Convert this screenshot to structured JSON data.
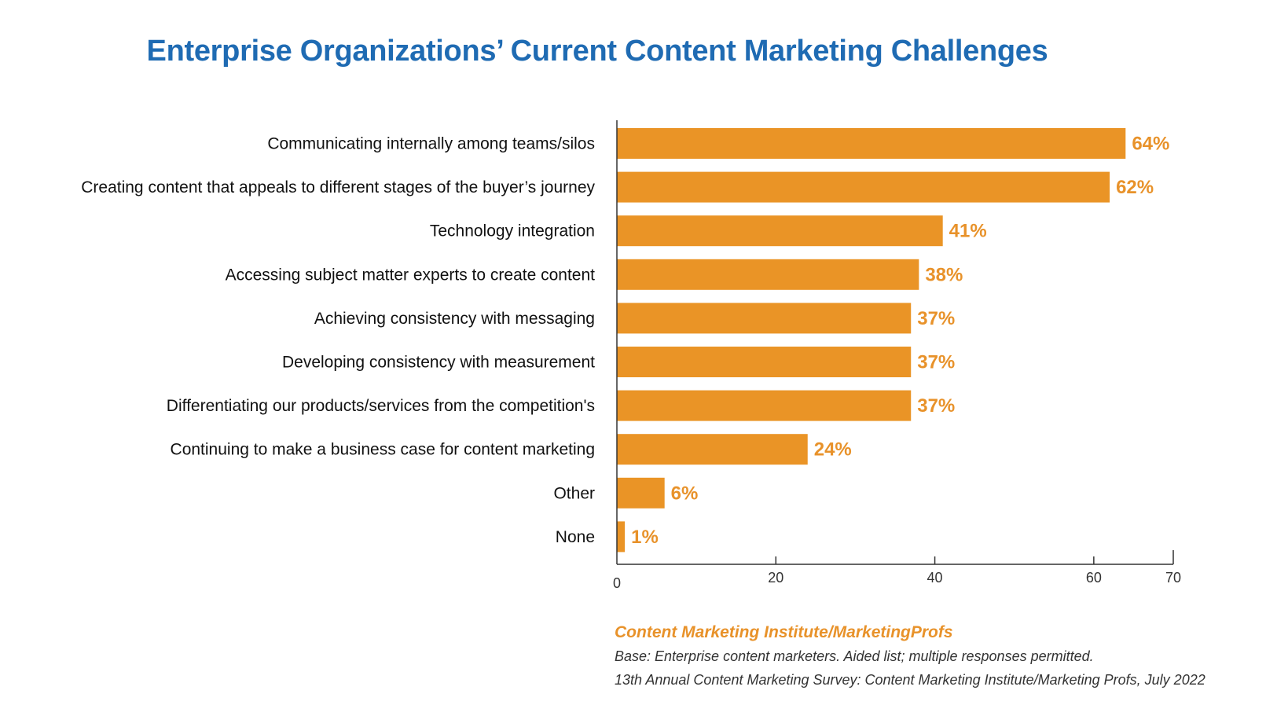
{
  "title": "Enterprise Organizations’ Current Content Marketing Challenges",
  "colors": {
    "title": "#1f6bb3",
    "bar": "#ea9426",
    "label_value": "#e8922a",
    "axis": "#333333",
    "text": "#111111"
  },
  "chart_data": {
    "type": "bar",
    "orientation": "horizontal",
    "title": "Enterprise Organizations’ Current Content Marketing Challenges",
    "categories": [
      "Communicating internally among teams/silos",
      "Creating content that appeals to different stages of the buyer’s journey",
      "Technology integration",
      "Accessing subject matter experts to create content",
      "Achieving consistency with messaging",
      "Developing consistency with measurement",
      "Differentiating our products/services from the competition's",
      "Continuing to make a business case for content marketing",
      "Other",
      "None"
    ],
    "values": [
      64,
      62,
      41,
      38,
      37,
      37,
      37,
      24,
      6,
      1
    ],
    "value_labels": [
      "64%",
      "62%",
      "41%",
      "38%",
      "37%",
      "37%",
      "37%",
      "24%",
      "6%",
      "1%"
    ],
    "xlim": [
      0,
      70
    ],
    "x_ticks": [
      0,
      20,
      40,
      60,
      70
    ],
    "x_tick_labels": [
      "0",
      "20",
      "40",
      "60",
      "70"
    ],
    "xlabel": "",
    "ylabel": "",
    "grid": false,
    "legend": "none"
  },
  "source": {
    "org": "Content Marketing Institute/MarketingProfs",
    "base": "Base: Enterprise content marketers. Aided list; multiple responses permitted.",
    "survey": "13th Annual Content Marketing Survey: Content Marketing Institute/Marketing Profs, July 2022"
  }
}
